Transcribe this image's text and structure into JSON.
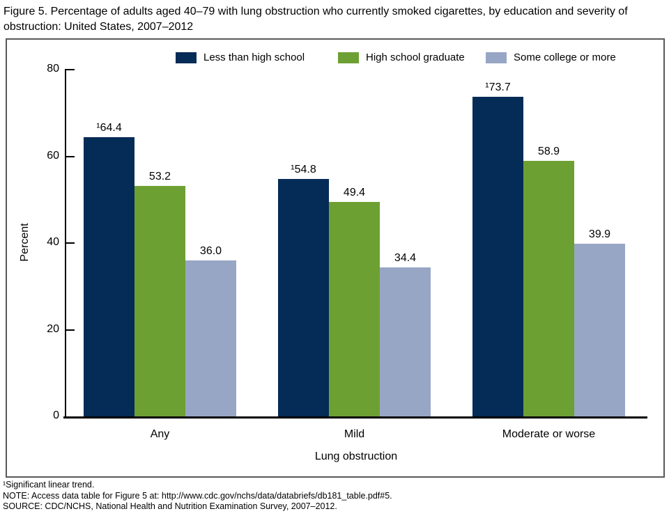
{
  "figure": {
    "title": "Figure 5. Percentage of adults aged 40–79 with lung obstruction who currently smoked cigarettes, by education and severity of obstruction: United States, 2007–2012"
  },
  "footnotes": {
    "line1": "¹Significant linear trend.",
    "line2": "NOTE: Access data table for Figure 5 at: http://www.cdc.gov/nchs/data/databriefs/db181_table.pdf#5.",
    "line3": "SOURCE: CDC/NCHS, National Health and Nutrition Examination Survey, 2007–2012."
  },
  "chart_data": {
    "type": "bar",
    "categories": [
      "Any",
      "Mild",
      "Moderate or worse"
    ],
    "series": [
      {
        "name": "Less than high school",
        "color": "#052b57",
        "values": [
          64.4,
          54.8,
          73.7
        ],
        "value_labels": [
          "¹64.4",
          "¹54.8",
          "¹73.7"
        ]
      },
      {
        "name": "High school graduate",
        "color": "#6da033",
        "values": [
          53.2,
          49.4,
          58.9
        ],
        "value_labels": [
          "53.2",
          "49.4",
          "58.9"
        ]
      },
      {
        "name": "Some college or more",
        "color": "#98a6c5",
        "values": [
          36.0,
          34.4,
          39.9
        ],
        "value_labels": [
          "36.0",
          "34.4",
          "39.9"
        ]
      }
    ],
    "xlabel": "Lung obstruction",
    "ylabel": "Percent",
    "ylim": [
      0,
      80
    ],
    "yticks": [
      0,
      20,
      40,
      60,
      80
    ],
    "grid": false,
    "legend_position": "top",
    "significance_marker": "¹",
    "axis_color": "#000000",
    "panel_border_color": "#595959"
  }
}
